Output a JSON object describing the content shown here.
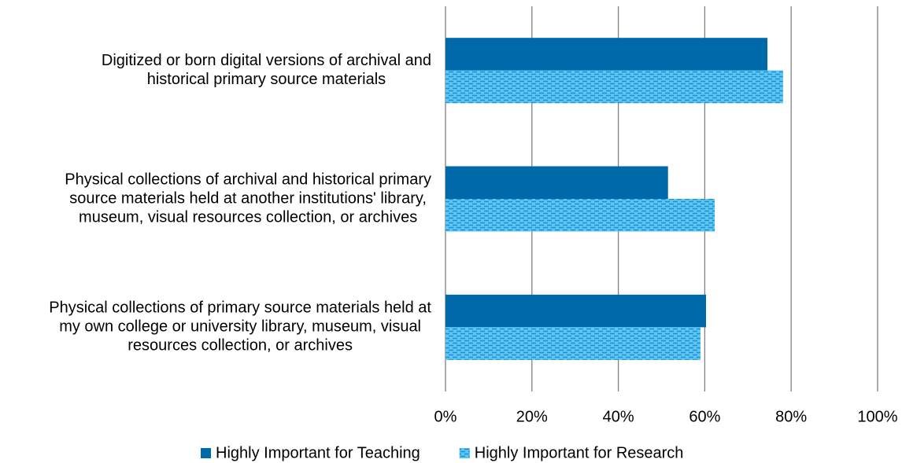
{
  "chart_data": {
    "type": "hbar",
    "categories": [
      [
        "Digitized or born digital versions of archival and",
        "historical primary source materials"
      ],
      [
        "Physical collections of archival and historical primary",
        "source materials held at another institutions' library,",
        "museum, visual resources collection, or archives"
      ],
      [
        "Physical collections of primary source materials held at",
        "my own college or university library, museum, visual",
        "resources collection, or archives"
      ]
    ],
    "series": [
      {
        "name": "Highly Important for Teaching",
        "color": "#0069aa",
        "values": [
          74.5,
          51.5,
          60.3
        ]
      },
      {
        "name": "Highly Important for Research",
        "color": "#4fbdf0",
        "hatch": true,
        "values": [
          78.1,
          62.3,
          59.0
        ]
      }
    ],
    "xlim": [
      0,
      100
    ],
    "xticks": [
      {
        "value": 0,
        "label": "0%"
      },
      {
        "value": 20,
        "label": "20%"
      },
      {
        "value": 40,
        "label": "40%"
      },
      {
        "value": 60,
        "label": "60%"
      },
      {
        "value": 80,
        "label": "80%"
      },
      {
        "value": 100,
        "label": "100%"
      }
    ],
    "grid": true,
    "legend": "bottom"
  }
}
